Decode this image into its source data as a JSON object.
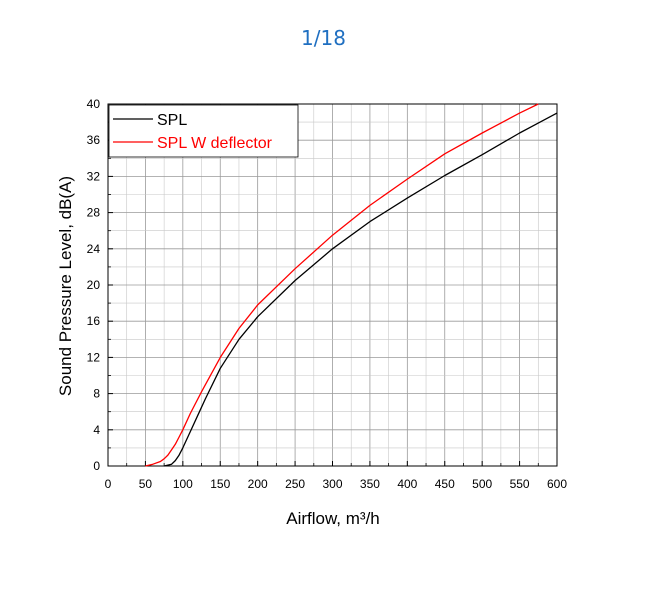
{
  "page_indicator": "1/18",
  "chart_data": {
    "type": "line",
    "title": "",
    "xlabel": "Airflow, m³/h",
    "ylabel": "Sound Pressure Level, dB(A)",
    "xlim": [
      0,
      600
    ],
    "ylim": [
      0,
      40
    ],
    "x_ticks": [
      0,
      50,
      100,
      150,
      200,
      250,
      300,
      350,
      400,
      450,
      500,
      550,
      600
    ],
    "y_ticks": [
      0,
      4,
      8,
      12,
      16,
      20,
      24,
      28,
      32,
      36,
      40
    ],
    "grid": true,
    "legend_position": "top-left",
    "series": [
      {
        "name": "SPL",
        "color": "#000000",
        "x": [
          75,
          85,
          90,
          95,
          100,
          110,
          120,
          130,
          150,
          175,
          200,
          250,
          300,
          350,
          400,
          450,
          500,
          550,
          600
        ],
        "y": [
          0,
          0.2,
          0.6,
          1.2,
          2.0,
          3.8,
          5.6,
          7.4,
          10.8,
          14.0,
          16.5,
          20.5,
          24.0,
          27.0,
          29.6,
          32.1,
          34.4,
          36.8,
          39.0
        ]
      },
      {
        "name": "SPL W deflector",
        "color": "#ff0000",
        "x": [
          50,
          60,
          70,
          75,
          80,
          85,
          90,
          95,
          100,
          110,
          125,
          150,
          175,
          200,
          250,
          300,
          350,
          400,
          450,
          500,
          550,
          575
        ],
        "y": [
          0,
          0.2,
          0.5,
          0.8,
          1.2,
          1.8,
          2.4,
          3.2,
          4.0,
          5.8,
          8.2,
          12.0,
          15.2,
          17.8,
          21.8,
          25.5,
          28.8,
          31.7,
          34.5,
          36.8,
          39.0,
          40.0
        ]
      }
    ]
  }
}
